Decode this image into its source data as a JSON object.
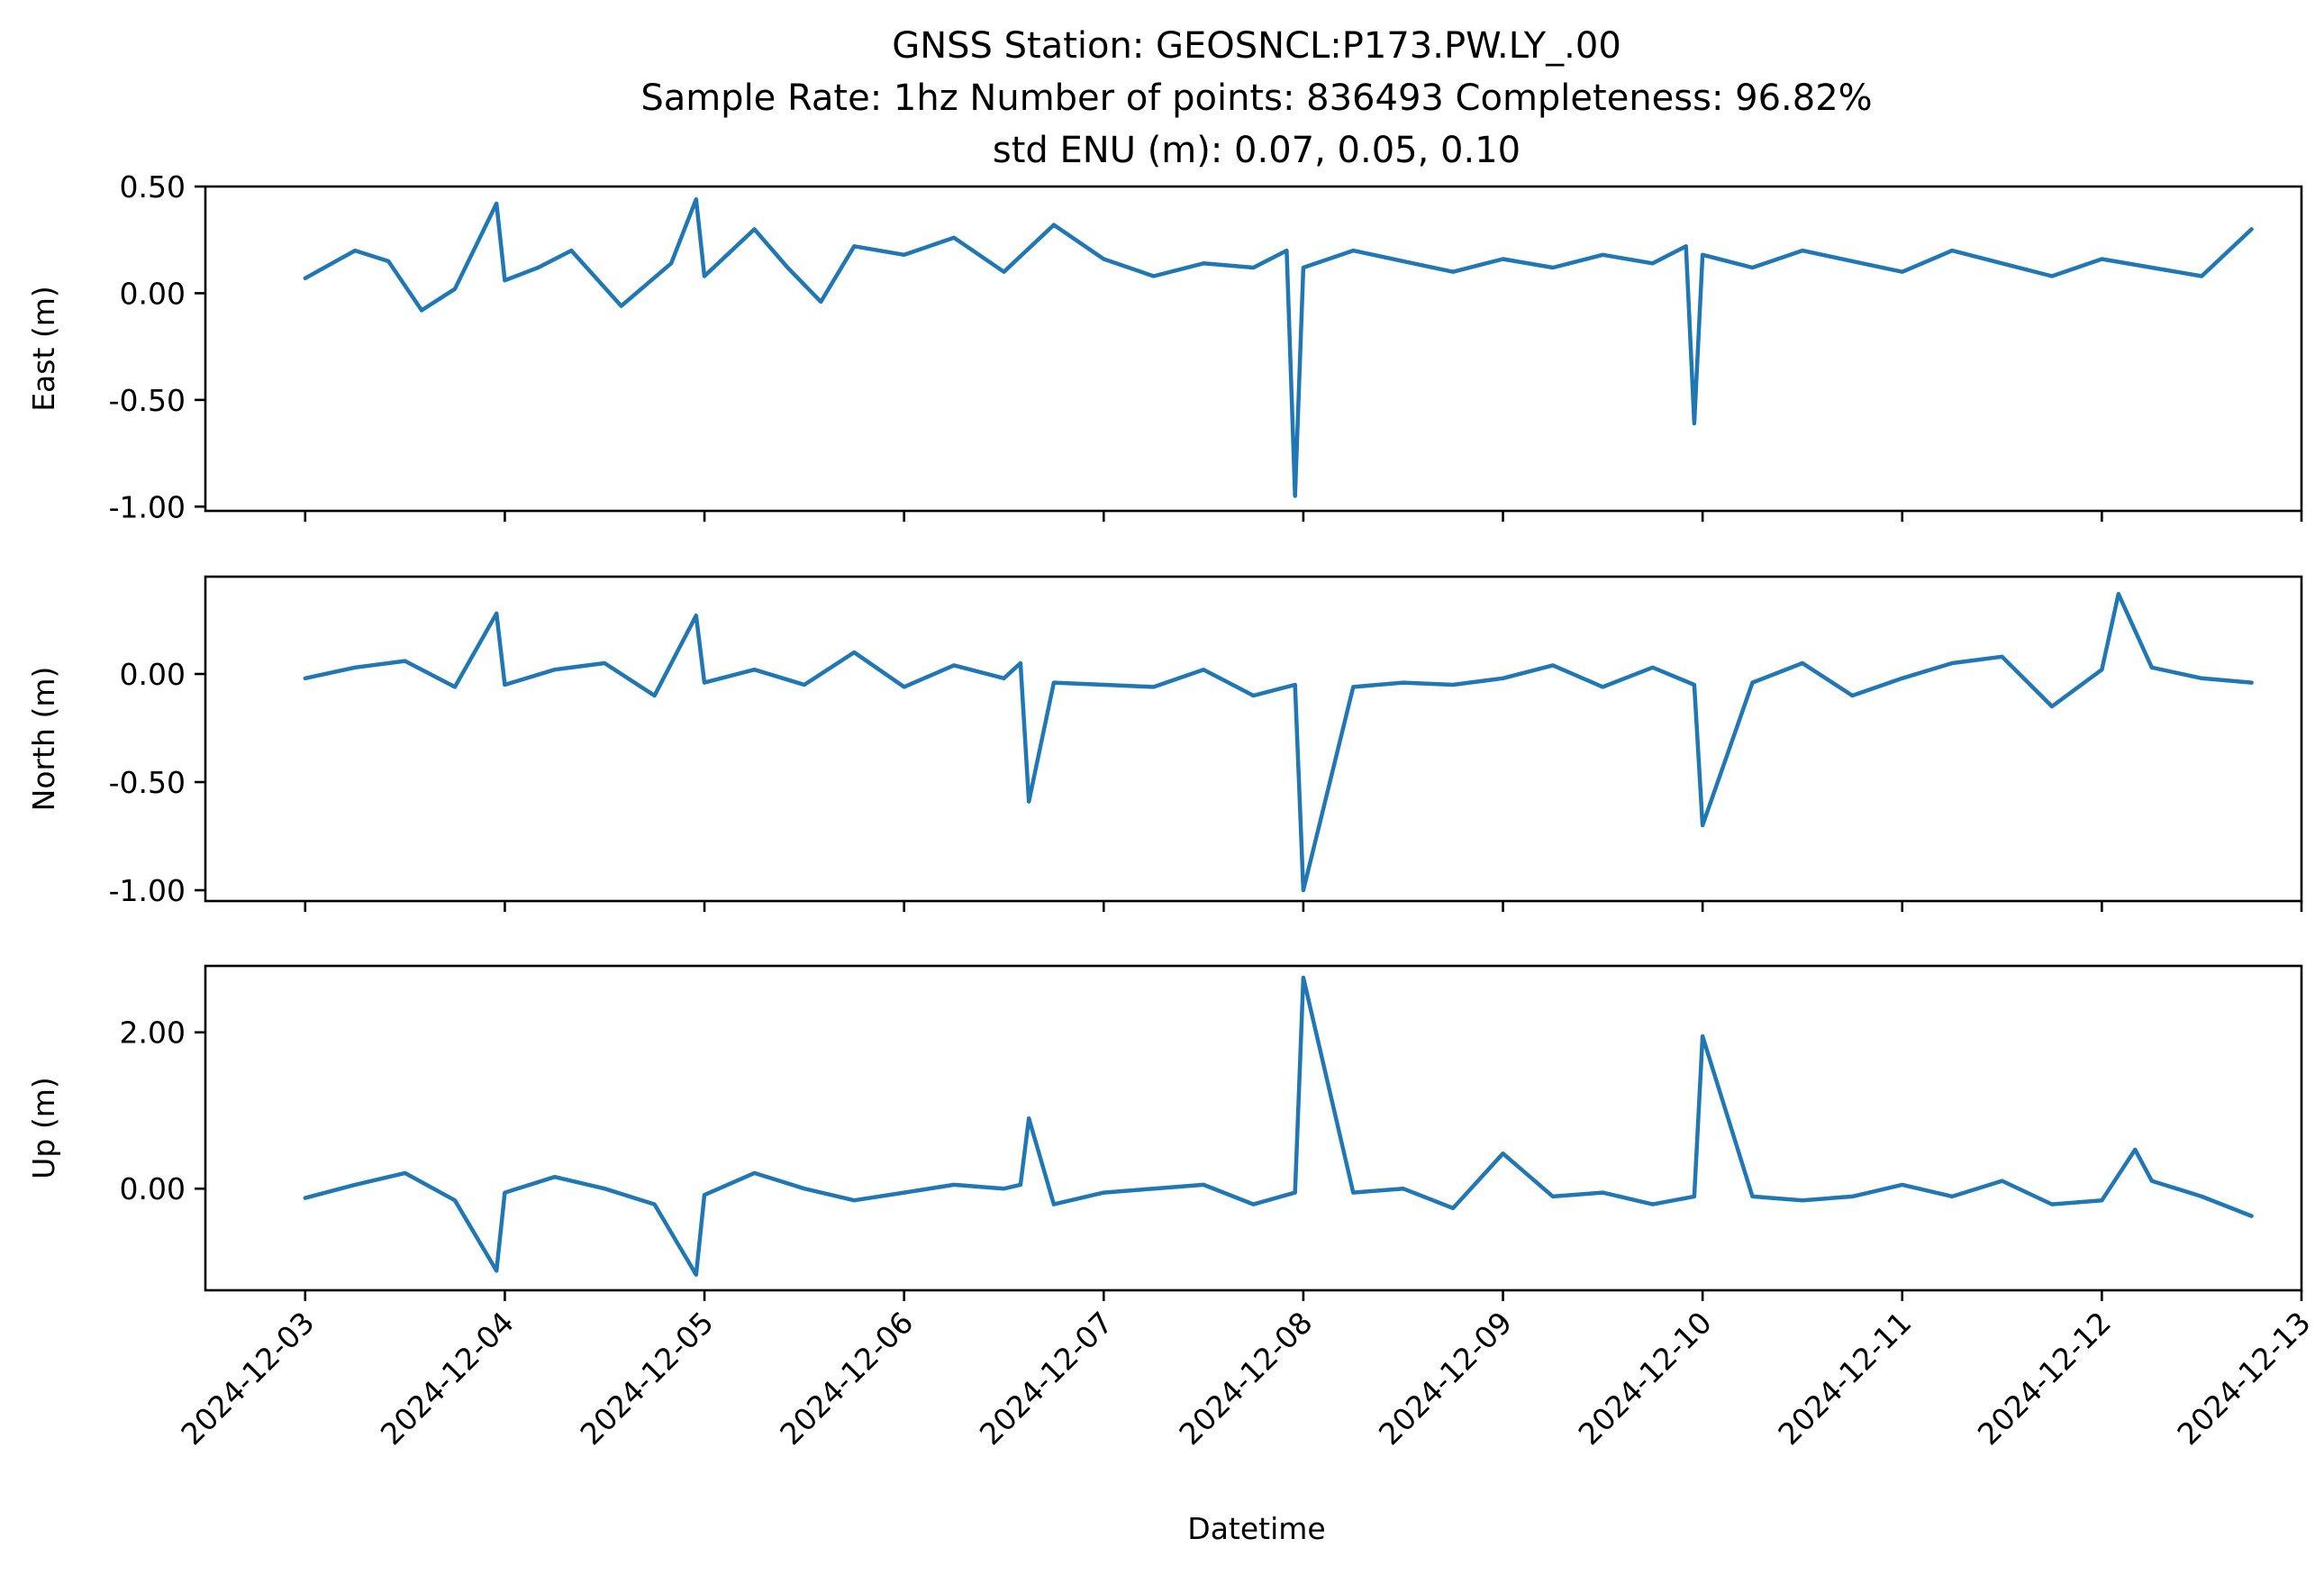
{
  "chart_data": {
    "type": "line",
    "title": [
      "GNSS Station: GEOSNCL:P173.PW.LY_.00",
      "Sample Rate: 1hz   Number of points: 836493    Completeness:  96.82%",
      "std ENU (m):  0.07, 0.05, 0.10"
    ],
    "xlabel": "Datetime",
    "x_ticks": [
      "2024-12-03",
      "2024-12-04",
      "2024-12-05",
      "2024-12-06",
      "2024-12-07",
      "2024-12-08",
      "2024-12-09",
      "2024-12-10",
      "2024-12-11",
      "2024-12-12",
      "2024-12-13"
    ],
    "xlim": [
      "2024-12-02T12:00",
      "2024-12-13T00:00"
    ],
    "panels": [
      {
        "ylabel": "East (m)",
        "ylim": [
          -1.02,
          0.5
        ],
        "y_ticks": [
          0.5,
          0.0,
          -0.5,
          -1.0
        ],
        "y_tick_labels": [
          "0.50",
          "0.00",
          "-0.50",
          "-1.00"
        ],
        "series": [
          {
            "color": "#1f77b4",
            "x": [
              "2024-12-03T00:00",
              "2024-12-03T06:00",
              "2024-12-03T10:00",
              "2024-12-03T14:00",
              "2024-12-03T18:00",
              "2024-12-03T23:00",
              "2024-12-04T00:00",
              "2024-12-04T04:00",
              "2024-12-04T08:00",
              "2024-12-04T14:00",
              "2024-12-04T20:00",
              "2024-12-04T23:00",
              "2024-12-05T00:00",
              "2024-12-05T06:00",
              "2024-12-05T10:00",
              "2024-12-05T14:00",
              "2024-12-05T18:00",
              "2024-12-06T00:00",
              "2024-12-06T06:00",
              "2024-12-06T12:00",
              "2024-12-06T18:00",
              "2024-12-07T00:00",
              "2024-12-07T06:00",
              "2024-12-07T12:00",
              "2024-12-07T18:00",
              "2024-12-07T22:00",
              "2024-12-07T23:00",
              "2024-12-08T00:00",
              "2024-12-08T06:00",
              "2024-12-08T12:00",
              "2024-12-08T18:00",
              "2024-12-09T00:00",
              "2024-12-09T06:00",
              "2024-12-09T12:00",
              "2024-12-09T18:00",
              "2024-12-09T22:00",
              "2024-12-09T23:00",
              "2024-12-10T00:00",
              "2024-12-10T06:00",
              "2024-12-10T12:00",
              "2024-12-10T18:00",
              "2024-12-11T00:00",
              "2024-12-11T06:00",
              "2024-12-11T12:00",
              "2024-12-11T18:00",
              "2024-12-12T00:00",
              "2024-12-12T06:00",
              "2024-12-12T12:00",
              "2024-12-12T18:00"
            ],
            "y": [
              0.07,
              0.2,
              0.15,
              -0.08,
              0.02,
              0.42,
              0.06,
              0.12,
              0.2,
              -0.06,
              0.14,
              0.44,
              0.08,
              0.3,
              0.12,
              -0.04,
              0.22,
              0.18,
              0.26,
              0.1,
              0.32,
              0.16,
              0.08,
              0.14,
              0.12,
              0.2,
              -0.95,
              0.12,
              0.2,
              0.15,
              0.1,
              0.16,
              0.12,
              0.18,
              0.14,
              0.22,
              -0.61,
              0.18,
              0.12,
              0.2,
              0.15,
              0.1,
              0.2,
              0.14,
              0.08,
              0.16,
              0.12,
              0.08,
              0.3
            ]
          }
        ]
      },
      {
        "ylabel": "North (m)",
        "ylim": [
          -1.05,
          0.45
        ],
        "y_ticks": [
          0.0,
          -0.5,
          -1.0
        ],
        "y_tick_labels": [
          "0.00",
          "-0.50",
          "-1.00"
        ],
        "series": [
          {
            "color": "#1f77b4",
            "x": [
              "2024-12-03T00:00",
              "2024-12-03T06:00",
              "2024-12-03T12:00",
              "2024-12-03T18:00",
              "2024-12-03T23:00",
              "2024-12-04T00:00",
              "2024-12-04T06:00",
              "2024-12-04T12:00",
              "2024-12-04T18:00",
              "2024-12-04T23:00",
              "2024-12-05T00:00",
              "2024-12-05T06:00",
              "2024-12-05T12:00",
              "2024-12-05T18:00",
              "2024-12-06T00:00",
              "2024-12-06T06:00",
              "2024-12-06T12:00",
              "2024-12-06T14:00",
              "2024-12-06T15:00",
              "2024-12-06T18:00",
              "2024-12-07T00:00",
              "2024-12-07T06:00",
              "2024-12-07T12:00",
              "2024-12-07T18:00",
              "2024-12-07T23:00",
              "2024-12-08T00:00",
              "2024-12-08T06:00",
              "2024-12-08T12:00",
              "2024-12-08T18:00",
              "2024-12-09T00:00",
              "2024-12-09T06:00",
              "2024-12-09T12:00",
              "2024-12-09T18:00",
              "2024-12-09T23:00",
              "2024-12-10T00:00",
              "2024-12-10T06:00",
              "2024-12-10T12:00",
              "2024-12-10T18:00",
              "2024-12-11T00:00",
              "2024-12-11T06:00",
              "2024-12-11T12:00",
              "2024-12-11T18:00",
              "2024-12-12T00:00",
              "2024-12-12T02:00",
              "2024-12-12T06:00",
              "2024-12-12T12:00",
              "2024-12-12T18:00"
            ],
            "y": [
              -0.02,
              0.03,
              0.06,
              -0.06,
              0.28,
              -0.05,
              0.02,
              0.05,
              -0.1,
              0.27,
              -0.04,
              0.02,
              -0.05,
              0.1,
              -0.06,
              0.04,
              -0.02,
              0.05,
              -0.59,
              -0.04,
              -0.05,
              -0.06,
              0.02,
              -0.1,
              -0.05,
              -1.0,
              -0.06,
              -0.04,
              -0.05,
              -0.02,
              0.04,
              -0.06,
              0.03,
              -0.05,
              -0.7,
              -0.04,
              0.05,
              -0.1,
              -0.02,
              0.05,
              0.08,
              -0.15,
              0.02,
              0.37,
              0.03,
              -0.02,
              -0.04
            ]
          }
        ]
      },
      {
        "ylabel": "Up (m)",
        "ylim": [
          -1.3,
          2.85
        ],
        "y_ticks": [
          2.0,
          0.0
        ],
        "y_tick_labels": [
          "2.00",
          "0.00"
        ],
        "series": [
          {
            "color": "#1f77b4",
            "x": [
              "2024-12-03T00:00",
              "2024-12-03T06:00",
              "2024-12-03T12:00",
              "2024-12-03T18:00",
              "2024-12-03T23:00",
              "2024-12-04T00:00",
              "2024-12-04T06:00",
              "2024-12-04T12:00",
              "2024-12-04T18:00",
              "2024-12-04T23:00",
              "2024-12-05T00:00",
              "2024-12-05T06:00",
              "2024-12-05T12:00",
              "2024-12-05T18:00",
              "2024-12-06T00:00",
              "2024-12-06T06:00",
              "2024-12-06T12:00",
              "2024-12-06T14:00",
              "2024-12-06T15:00",
              "2024-12-06T18:00",
              "2024-12-07T00:00",
              "2024-12-07T06:00",
              "2024-12-07T12:00",
              "2024-12-07T18:00",
              "2024-12-07T23:00",
              "2024-12-08T00:00",
              "2024-12-08T06:00",
              "2024-12-08T12:00",
              "2024-12-08T18:00",
              "2024-12-09T00:00",
              "2024-12-09T06:00",
              "2024-12-09T12:00",
              "2024-12-09T18:00",
              "2024-12-09T23:00",
              "2024-12-10T00:00",
              "2024-12-10T06:00",
              "2024-12-10T12:00",
              "2024-12-10T18:00",
              "2024-12-11T00:00",
              "2024-12-11T06:00",
              "2024-12-11T12:00",
              "2024-12-11T18:00",
              "2024-12-12T00:00",
              "2024-12-12T04:00",
              "2024-12-12T06:00",
              "2024-12-12T12:00",
              "2024-12-12T18:00"
            ],
            "y": [
              -0.12,
              0.05,
              0.2,
              -0.15,
              -1.05,
              -0.05,
              0.15,
              0.0,
              -0.2,
              -1.1,
              -0.08,
              0.2,
              0.0,
              -0.15,
              -0.05,
              0.05,
              0.0,
              0.05,
              0.9,
              -0.2,
              -0.05,
              0.0,
              0.05,
              -0.2,
              -0.05,
              2.7,
              -0.05,
              0.0,
              -0.25,
              0.45,
              -0.1,
              -0.05,
              -0.2,
              -0.1,
              1.95,
              -0.1,
              -0.15,
              -0.1,
              0.05,
              -0.1,
              0.1,
              -0.2,
              -0.15,
              0.5,
              0.1,
              -0.1,
              -0.35
            ]
          }
        ]
      }
    ],
    "grid": false,
    "legend": "none"
  }
}
